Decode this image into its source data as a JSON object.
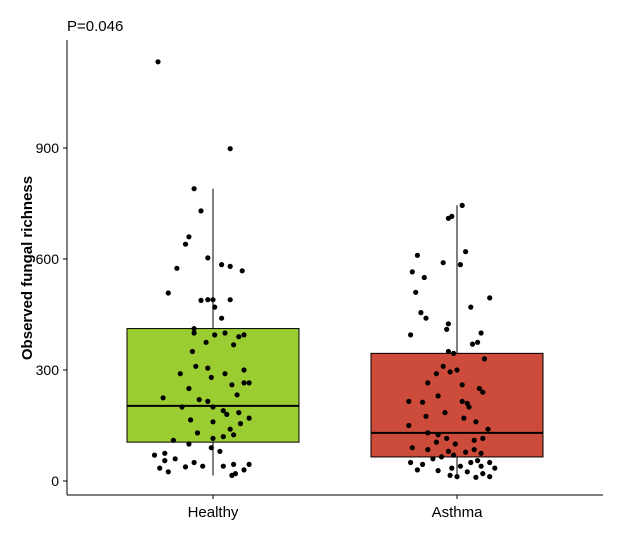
{
  "chart_data": {
    "type": "box",
    "annotation": "P=0.046",
    "ylabel": "Observed fungal richness",
    "xlabel": "",
    "ylim": [
      -40,
      1190
    ],
    "yticks": [
      0,
      300,
      600,
      900
    ],
    "categories": [
      "Healthy",
      "Asthma"
    ],
    "grid": false,
    "legend": "none",
    "boxes": [
      {
        "name": "Healthy",
        "color": "#9ACD32",
        "whisker_low": 15,
        "q1": 105,
        "median": 203,
        "q3": 412,
        "whisker_high": 790,
        "points": [
          [
            -0.32,
            1133
          ],
          [
            0.1,
            898
          ],
          [
            -0.11,
            790
          ],
          [
            -0.07,
            730
          ],
          [
            -0.14,
            660
          ],
          [
            -0.16,
            640
          ],
          [
            -0.21,
            575
          ],
          [
            -0.03,
            603
          ],
          [
            0.05,
            585
          ],
          [
            0.1,
            580
          ],
          [
            0.17,
            568
          ],
          [
            -0.26,
            508
          ],
          [
            -0.07,
            488
          ],
          [
            -0.03,
            490
          ],
          [
            0.0,
            490
          ],
          [
            0.1,
            490
          ],
          [
            0.01,
            470
          ],
          [
            0.05,
            440
          ],
          [
            -0.11,
            412
          ],
          [
            -0.11,
            400
          ],
          [
            0.07,
            400
          ],
          [
            0.18,
            395
          ],
          [
            0.01,
            395
          ],
          [
            0.15,
            390
          ],
          [
            -0.04,
            375
          ],
          [
            0.12,
            368
          ],
          [
            -0.12,
            350
          ],
          [
            -0.1,
            310
          ],
          [
            -0.03,
            305
          ],
          [
            0.18,
            300
          ],
          [
            -0.19,
            290
          ],
          [
            0.07,
            290
          ],
          [
            -0.01,
            280
          ],
          [
            0.18,
            265
          ],
          [
            0.21,
            265
          ],
          [
            0.11,
            260
          ],
          [
            -0.14,
            250
          ],
          [
            0.14,
            233
          ],
          [
            -0.29,
            225
          ],
          [
            -0.08,
            220
          ],
          [
            -0.03,
            215
          ],
          [
            0.0,
            200
          ],
          [
            -0.18,
            200
          ],
          [
            0.06,
            190
          ],
          [
            0.15,
            185
          ],
          [
            0.08,
            180
          ],
          [
            0.21,
            170
          ],
          [
            -0.13,
            165
          ],
          [
            0.0,
            160
          ],
          [
            0.16,
            155
          ],
          [
            0.1,
            140
          ],
          [
            -0.09,
            130
          ],
          [
            0.12,
            125
          ],
          [
            0.06,
            120
          ],
          [
            0.0,
            115
          ],
          [
            -0.23,
            110
          ],
          [
            -0.14,
            100
          ],
          [
            -0.01,
            90
          ],
          [
            0.04,
            80
          ],
          [
            -0.28,
            75
          ],
          [
            -0.34,
            70
          ],
          [
            -0.22,
            60
          ],
          [
            -0.28,
            55
          ],
          [
            -0.11,
            50
          ],
          [
            0.21,
            45
          ],
          [
            0.12,
            45
          ],
          [
            0.06,
            40
          ],
          [
            -0.06,
            40
          ],
          [
            -0.16,
            38
          ],
          [
            -0.31,
            35
          ],
          [
            0.18,
            30
          ],
          [
            -0.26,
            25
          ],
          [
            0.13,
            20
          ],
          [
            0.11,
            15
          ]
        ]
      },
      {
        "name": "Asthma",
        "color": "#CD4B3A",
        "whisker_low": 10,
        "q1": 65,
        "median": 130,
        "q3": 345,
        "whisker_high": 745,
        "points": [
          [
            0.03,
            745
          ],
          [
            -0.03,
            715
          ],
          [
            -0.05,
            710
          ],
          [
            0.05,
            620
          ],
          [
            -0.23,
            610
          ],
          [
            -0.08,
            590
          ],
          [
            0.02,
            585
          ],
          [
            -0.26,
            565
          ],
          [
            -0.19,
            550
          ],
          [
            -0.24,
            510
          ],
          [
            0.19,
            495
          ],
          [
            0.08,
            470
          ],
          [
            -0.21,
            455
          ],
          [
            -0.18,
            440
          ],
          [
            -0.05,
            425
          ],
          [
            -0.06,
            410
          ],
          [
            0.14,
            400
          ],
          [
            -0.27,
            395
          ],
          [
            0.12,
            375
          ],
          [
            0.09,
            370
          ],
          [
            -0.05,
            350
          ],
          [
            -0.02,
            345
          ],
          [
            0.16,
            330
          ],
          [
            -0.08,
            310
          ],
          [
            0.0,
            300
          ],
          [
            -0.04,
            295
          ],
          [
            -0.12,
            290
          ],
          [
            -0.17,
            265
          ],
          [
            0.03,
            260
          ],
          [
            0.13,
            250
          ],
          [
            0.15,
            240
          ],
          [
            -0.11,
            230
          ],
          [
            -0.28,
            215
          ],
          [
            0.03,
            215
          ],
          [
            -0.2,
            213
          ],
          [
            0.06,
            210
          ],
          [
            0.07,
            200
          ],
          [
            -0.07,
            185
          ],
          [
            -0.18,
            175
          ],
          [
            0.04,
            170
          ],
          [
            0.11,
            160
          ],
          [
            -0.28,
            150
          ],
          [
            0.18,
            140
          ],
          [
            -0.17,
            130
          ],
          [
            -0.11,
            125
          ],
          [
            0.15,
            115
          ],
          [
            -0.06,
            115
          ],
          [
            0.1,
            110
          ],
          [
            -0.12,
            105
          ],
          [
            -0.01,
            100
          ],
          [
            -0.26,
            90
          ],
          [
            -0.17,
            85
          ],
          [
            0.1,
            85
          ],
          [
            -0.05,
            80
          ],
          [
            0.05,
            78
          ],
          [
            0.14,
            75
          ],
          [
            -0.02,
            70
          ],
          [
            -0.09,
            65
          ],
          [
            -0.14,
            60
          ],
          [
            0.12,
            55
          ],
          [
            0.19,
            50
          ],
          [
            0.08,
            50
          ],
          [
            -0.27,
            50
          ],
          [
            -0.2,
            45
          ],
          [
            0.02,
            40
          ],
          [
            0.14,
            40
          ],
          [
            -0.03,
            35
          ],
          [
            0.22,
            35
          ],
          [
            -0.23,
            30
          ],
          [
            -0.11,
            28
          ],
          [
            0.06,
            25
          ],
          [
            0.15,
            20
          ],
          [
            -0.04,
            15
          ],
          [
            0.0,
            12
          ],
          [
            0.19,
            12
          ],
          [
            0.11,
            10
          ]
        ]
      }
    ]
  }
}
